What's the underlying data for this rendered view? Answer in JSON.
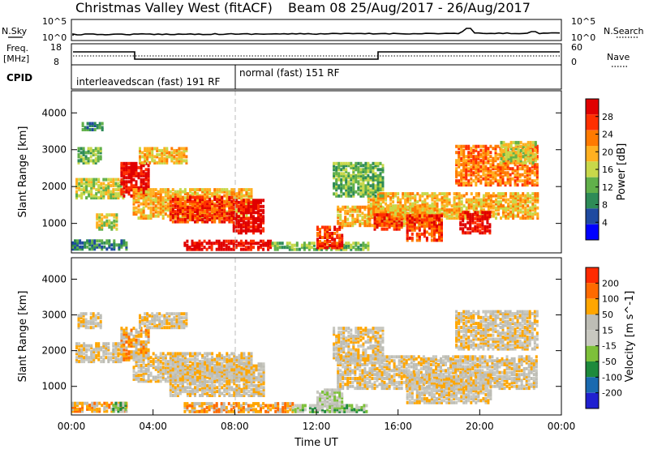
{
  "header": {
    "title_left": "Christmas Valley West (fitACF)",
    "title_right": "Beam 08 25/Aug/2017 - 26/Aug/2017"
  },
  "panels": {
    "nsky": {
      "left_label": "N.Sky",
      "left_ticks": [
        "10^5",
        "10^0"
      ],
      "right_ticks": [
        "10^5",
        "10^0"
      ],
      "right_label": "N.Search"
    },
    "freq": {
      "left_label": "Freq.",
      "left_unit": "[MHz]",
      "left_ticks": [
        "18",
        "8"
      ],
      "right_ticks": [
        "60",
        "0"
      ],
      "right_label": "Nave"
    },
    "cpid": {
      "label": "CPID",
      "segments": [
        {
          "text": "interleavedscan (fast) 191 RF",
          "start_hour": 0,
          "end_hour": 8
        },
        {
          "text": "normal (fast) 151 RF",
          "start_hour": 8,
          "end_hour": 24
        }
      ]
    }
  },
  "colors": {
    "power_scale": [
      "#0000ff",
      "#1f4aa0",
      "#2e8b57",
      "#61b04a",
      "#c8d84a",
      "#ffb020",
      "#ff7a00",
      "#ff3000",
      "#e00000"
    ],
    "velocity_scale": [
      "#2020d0",
      "#1a6ab0",
      "#1e8a3c",
      "#7dc03a",
      "#c8c8c0",
      "#bdbdb5",
      "#ffa600",
      "#ff6a00",
      "#ff2a00"
    ]
  },
  "chart_data": [
    {
      "type": "heatmap",
      "name": "power",
      "ylabel": "Slant Range [km]",
      "y_ticks": [
        1000,
        2000,
        3000,
        4000
      ],
      "ylim": [
        200,
        4600
      ],
      "xlim": [
        0,
        24
      ],
      "colorbar": {
        "label": "Power [dB]",
        "ticks": [
          "28",
          "24",
          "20",
          "16",
          "12",
          "8",
          "4"
        ],
        "range": [
          0,
          32
        ]
      },
      "patches": [
        {
          "t0": 0.0,
          "t1": 2.7,
          "r0": 260,
          "r1": 520,
          "level": 2
        },
        {
          "t0": 0.2,
          "t1": 2.6,
          "r0": 1650,
          "r1": 2150,
          "level": 4
        },
        {
          "t0": 0.3,
          "t1": 1.5,
          "r0": 2600,
          "r1": 3000,
          "level": 3
        },
        {
          "t0": 0.5,
          "t1": 1.5,
          "r0": 3500,
          "r1": 3700,
          "level": 2
        },
        {
          "t0": 2.4,
          "t1": 3.8,
          "r0": 1700,
          "r1": 2600,
          "level": 8
        },
        {
          "t0": 3.3,
          "t1": 5.7,
          "r0": 2600,
          "r1": 3000,
          "level": 5
        },
        {
          "t0": 3.0,
          "t1": 8.8,
          "r0": 1100,
          "r1": 1900,
          "level": 5
        },
        {
          "t0": 4.8,
          "t1": 7.9,
          "r0": 1000,
          "r1": 1700,
          "level": 7
        },
        {
          "t0": 7.9,
          "t1": 9.4,
          "r0": 700,
          "r1": 1600,
          "level": 8
        },
        {
          "t0": 1.2,
          "t1": 2.2,
          "r0": 800,
          "r1": 1200,
          "level": 4
        },
        {
          "t0": 5.5,
          "t1": 9.8,
          "r0": 250,
          "r1": 500,
          "level": 8
        },
        {
          "t0": 9.8,
          "t1": 14.5,
          "r0": 250,
          "r1": 450,
          "level": 3
        },
        {
          "t0": 13.0,
          "t1": 17.8,
          "r0": 900,
          "r1": 1400,
          "level": 5
        },
        {
          "t0": 14.5,
          "t1": 22.8,
          "r0": 1100,
          "r1": 1800,
          "level": 5
        },
        {
          "t0": 14.8,
          "t1": 16.2,
          "r0": 800,
          "r1": 1200,
          "level": 7
        },
        {
          "t0": 16.4,
          "t1": 18.2,
          "r0": 500,
          "r1": 1200,
          "level": 7
        },
        {
          "t0": 19.0,
          "t1": 20.5,
          "r0": 700,
          "r1": 1300,
          "level": 8
        },
        {
          "t0": 18.8,
          "t1": 22.8,
          "r0": 2000,
          "r1": 3100,
          "level": 6
        },
        {
          "t0": 21.0,
          "t1": 22.8,
          "r0": 2600,
          "r1": 3200,
          "level": 4
        },
        {
          "t0": 12.8,
          "t1": 15.2,
          "r0": 1700,
          "r1": 2600,
          "level": 3
        },
        {
          "t0": 12.0,
          "t1": 13.2,
          "r0": 300,
          "r1": 900,
          "level": 7
        }
      ]
    },
    {
      "type": "heatmap",
      "name": "velocity",
      "ylabel": "Slant Range [km]",
      "xlabel": "Time UT",
      "x_ticks": [
        "00:00",
        "04:00",
        "08:00",
        "12:00",
        "16:00",
        "20:00",
        "00:00"
      ],
      "y_ticks": [
        1000,
        2000,
        3000,
        4000
      ],
      "ylim": [
        200,
        4600
      ],
      "xlim": [
        0,
        24
      ],
      "colorbar": {
        "label": "Velocity [m s^-1]",
        "ticks": [
          "200",
          "100",
          "50",
          "15",
          "-15",
          "-50",
          "-100",
          "-200"
        ],
        "range": [
          -250,
          250
        ]
      },
      "patches": [
        {
          "t0": 0.0,
          "t1": 2.7,
          "r0": 260,
          "r1": 520,
          "level": 6
        },
        {
          "t0": 2.0,
          "t1": 2.7,
          "r0": 260,
          "r1": 520,
          "level": 3
        },
        {
          "t0": 0.2,
          "t1": 2.6,
          "r0": 1650,
          "r1": 2150,
          "level": 5
        },
        {
          "t0": 0.3,
          "t1": 1.5,
          "r0": 2600,
          "r1": 3000,
          "level": 5
        },
        {
          "t0": 2.4,
          "t1": 3.8,
          "r0": 1700,
          "r1": 2600,
          "level": 6
        },
        {
          "t0": 3.3,
          "t1": 5.7,
          "r0": 2600,
          "r1": 3000,
          "level": 5
        },
        {
          "t0": 3.0,
          "t1": 8.8,
          "r0": 1100,
          "r1": 1900,
          "level": 5
        },
        {
          "t0": 4.8,
          "t1": 9.4,
          "r0": 700,
          "r1": 1600,
          "level": 5
        },
        {
          "t0": 5.5,
          "t1": 10.8,
          "r0": 250,
          "r1": 500,
          "level": 6
        },
        {
          "t0": 10.8,
          "t1": 14.5,
          "r0": 250,
          "r1": 450,
          "level": 3
        },
        {
          "t0": 13.0,
          "t1": 22.8,
          "r0": 900,
          "r1": 1800,
          "level": 5
        },
        {
          "t0": 16.4,
          "t1": 20.5,
          "r0": 500,
          "r1": 1300,
          "level": 5
        },
        {
          "t0": 18.8,
          "t1": 22.8,
          "r0": 2000,
          "r1": 3100,
          "level": 5
        },
        {
          "t0": 12.8,
          "t1": 15.2,
          "r0": 1700,
          "r1": 2600,
          "level": 5
        },
        {
          "t0": 12.0,
          "t1": 13.2,
          "r0": 300,
          "r1": 900,
          "level": 4
        }
      ]
    }
  ]
}
